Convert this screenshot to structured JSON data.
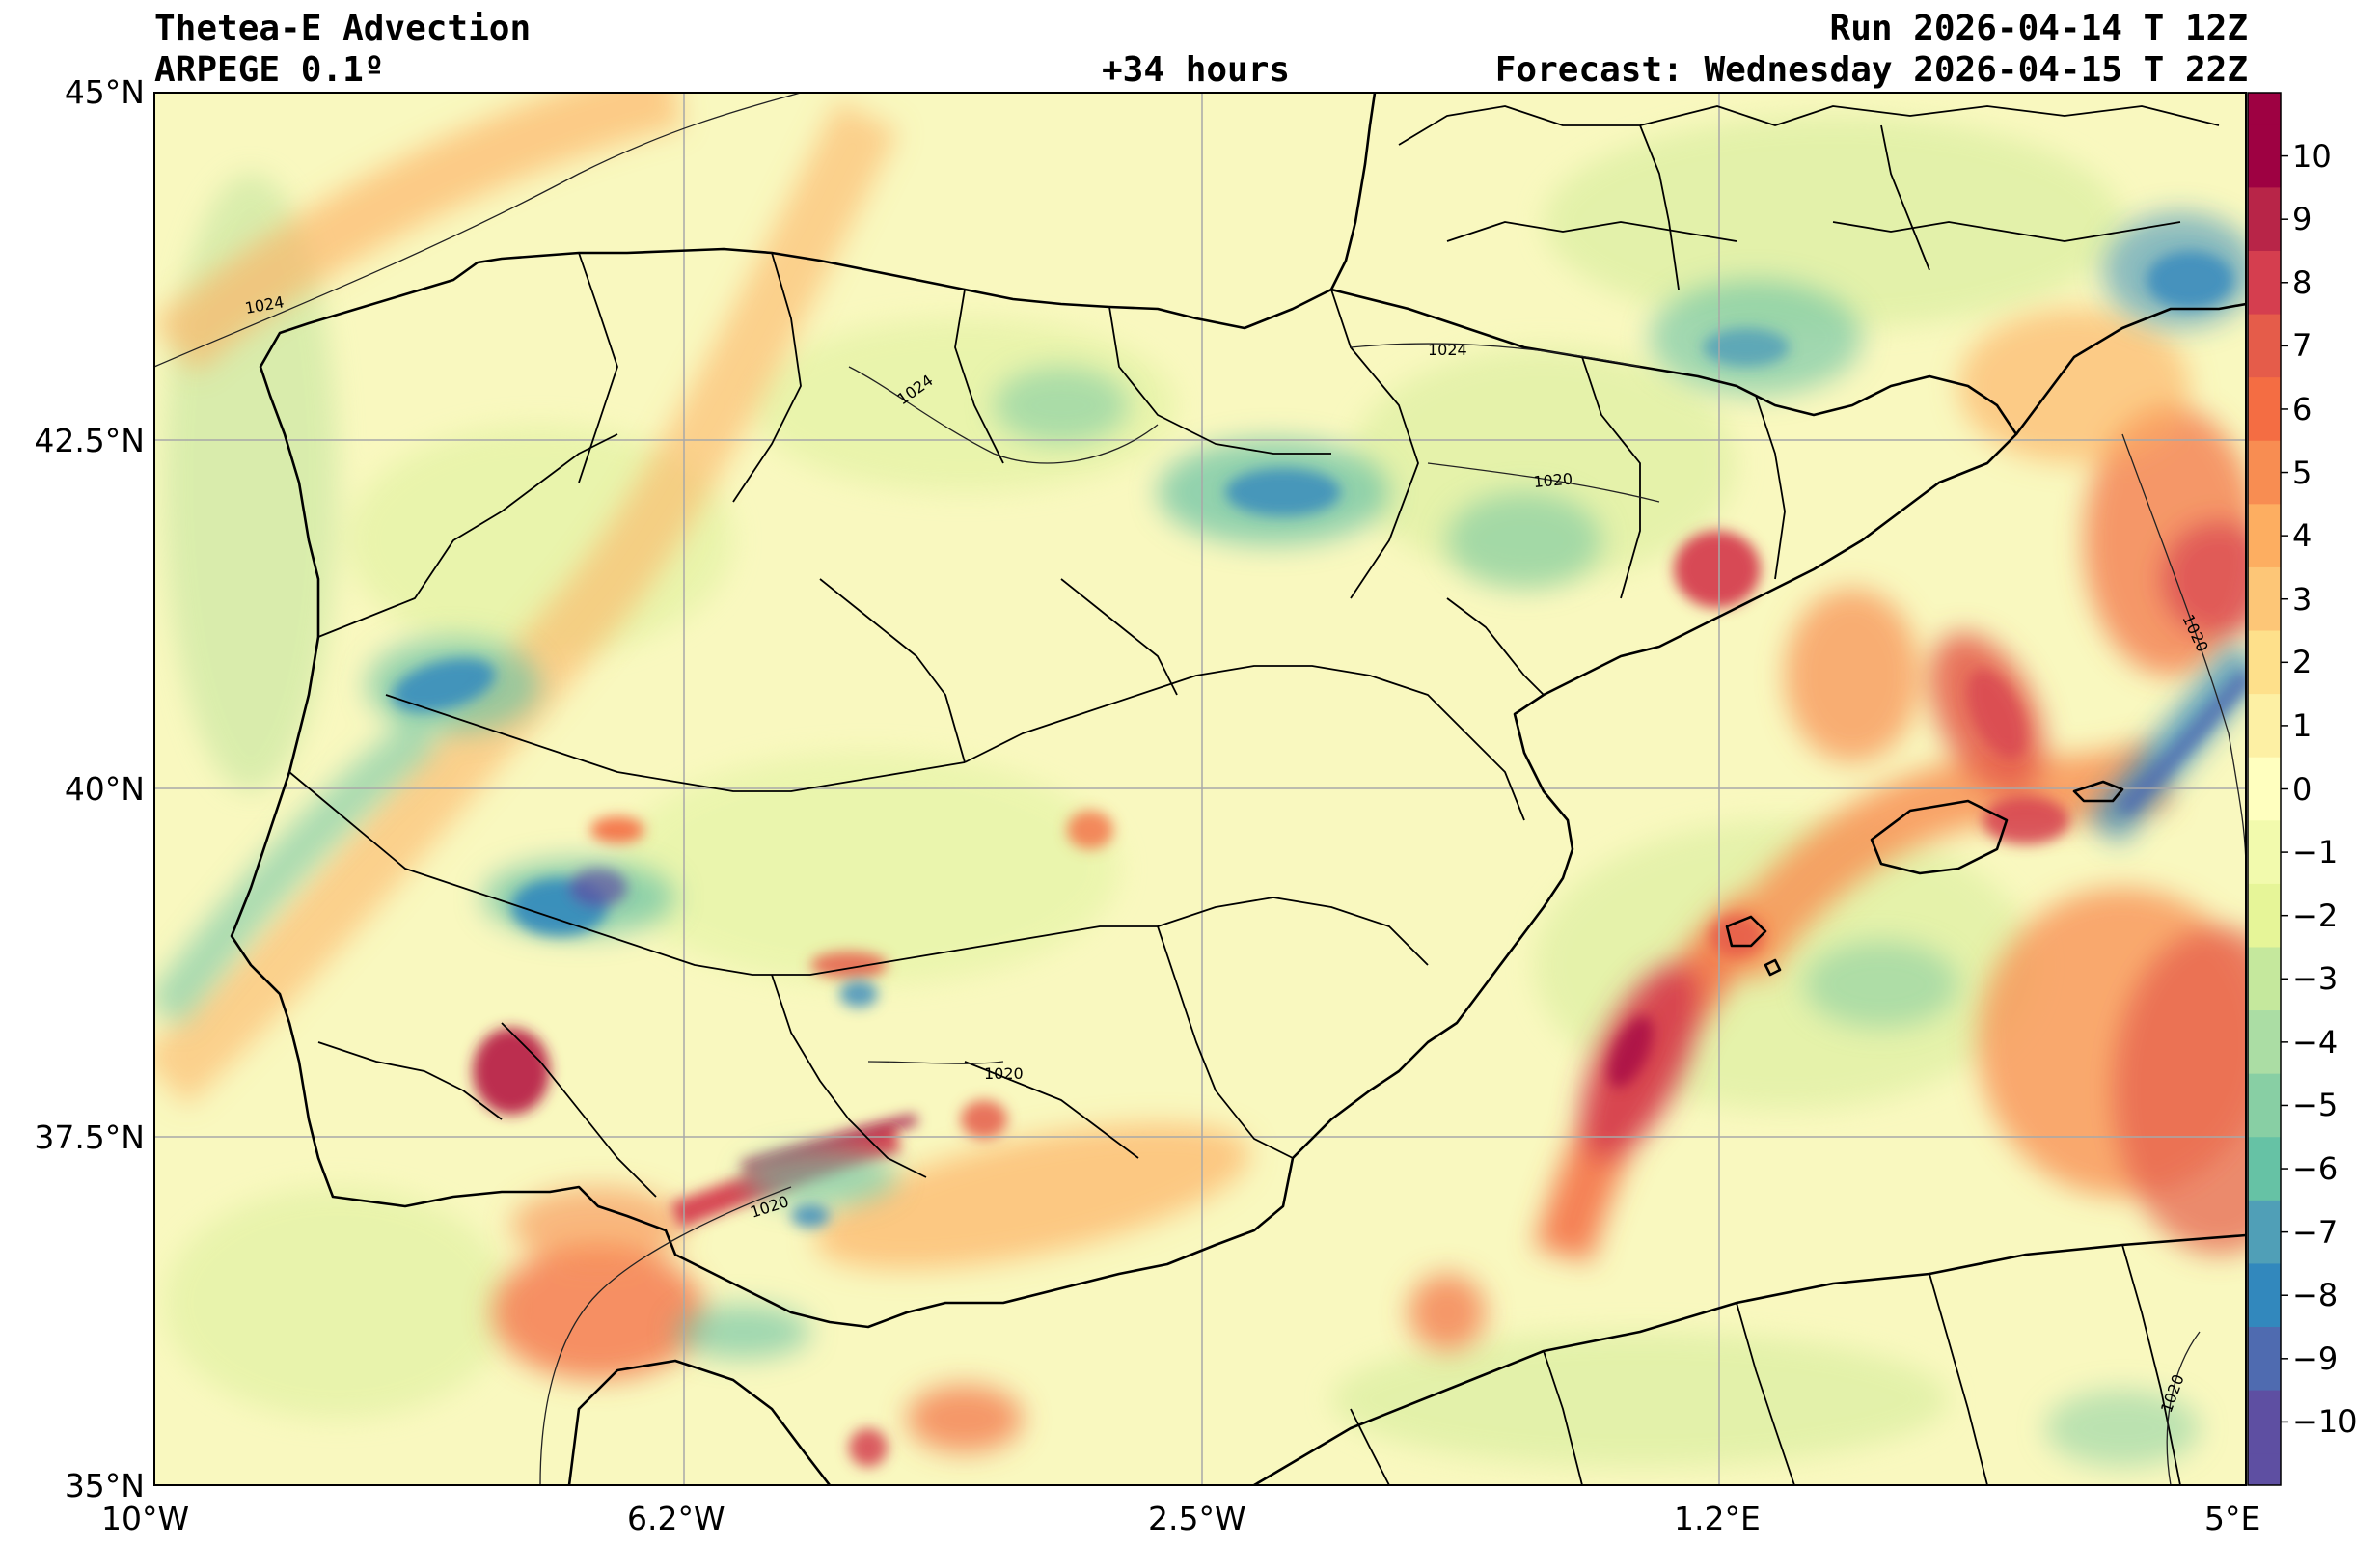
{
  "header": {
    "title": "Thetea-E Advection",
    "model": "ARPEGE 0.1º",
    "lead_time": "+34 hours",
    "run": "Run 2026-04-14 T 12Z",
    "forecast": "Forecast: Wednesday 2026-04-15 T 22Z"
  },
  "axes": {
    "lat_labels": [
      "45°N",
      "42.5°N",
      "40°N",
      "37.5°N",
      "35°N"
    ],
    "lon_labels": [
      "10°W",
      "6.2°W",
      "2.5°W",
      "1.2°E",
      "5°E"
    ],
    "lat_range": [
      35,
      45
    ],
    "lon_range": [
      -10,
      5
    ],
    "grid": true
  },
  "isobars": {
    "labels": [
      "1024",
      "1024",
      "1024",
      "1020",
      "1020",
      "1020",
      "1020",
      "1020"
    ]
  },
  "colorbar": {
    "labels": [
      "10",
      "9",
      "8",
      "7",
      "6",
      "5",
      "4",
      "3",
      "2",
      "1",
      "0",
      "−1",
      "−2",
      "−3",
      "−4",
      "−5",
      "−6",
      "−7",
      "−8",
      "−9",
      "−10"
    ],
    "colors": [
      "#9e0142",
      "#b82548",
      "#d53e4f",
      "#e55c4a",
      "#f46d43",
      "#f88d52",
      "#fdae61",
      "#fdc677",
      "#fee08b",
      "#fdf0a4",
      "#ffffbf",
      "#f2faad",
      "#e6f598",
      "#c5e89d",
      "#abdda4",
      "#88cfa4",
      "#66c2a5",
      "#509fb7",
      "#3288bd",
      "#4f6bb0",
      "#5e4fa2"
    ]
  },
  "colors": {
    "background": "#f9f8bf",
    "coastline": "#000000",
    "grid": "#a8a8a8",
    "isobar": "#222222"
  }
}
